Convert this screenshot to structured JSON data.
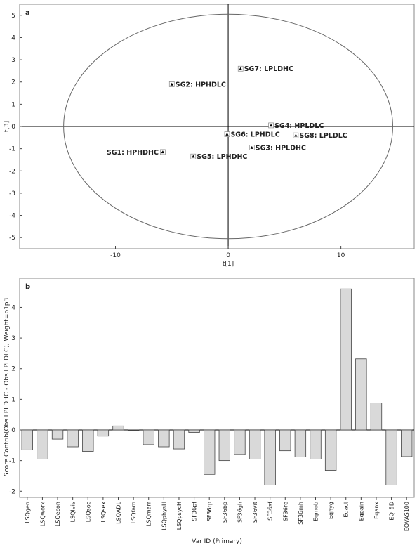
{
  "chart_data": [
    {
      "type": "scatter",
      "panel_label": "a",
      "xlabel": "t[1]",
      "ylabel": "t[3]",
      "xlim": [
        -18.5,
        16.5
      ],
      "ylim": [
        -5.5,
        5.5
      ],
      "x_ticks": [
        "-10",
        "0",
        "10"
      ],
      "y_ticks": [
        "5",
        "4",
        "3",
        "2",
        "1",
        "0",
        "-1",
        "-2",
        "-3",
        "-4",
        "-5"
      ],
      "x_tick_values": [
        -10,
        0,
        10
      ],
      "y_tick_values": [
        5,
        4,
        3,
        2,
        1,
        0,
        -1,
        -2,
        -3,
        -4,
        -5
      ],
      "ellipse": {
        "center": [
          0,
          0
        ],
        "rx": 14.6,
        "ry": 5.05
      },
      "points": [
        {
          "label": "SG7: LPLDHC",
          "x": 1.1,
          "y": 2.6
        },
        {
          "label": "SG2: HPHDLC",
          "x": -5.0,
          "y": 1.9
        },
        {
          "label": "SG4: HPLDLC",
          "x": 3.8,
          "y": 0.05
        },
        {
          "label": "SG6: LPHDLC",
          "x": -0.1,
          "y": -0.35
        },
        {
          "label": "SG8: LPLDLC",
          "x": 6.0,
          "y": -0.4
        },
        {
          "label": "SG1: HPHDHC",
          "x": -5.8,
          "y": -1.15
        },
        {
          "label": "SG3: HPLDHC",
          "x": 2.1,
          "y": -0.95
        },
        {
          "label": "SG5: LPHDHC",
          "x": -3.1,
          "y": -1.35
        }
      ]
    },
    {
      "type": "bar",
      "panel_label": "b",
      "ylabel": "Score Contrib(Obs LPLDHC - Obs LPLDLC), Weight=p1p3",
      "xlabel": "Var ID (Primary)",
      "ylim": [
        -2.2,
        4.95
      ],
      "y_ticks": [
        "4",
        "3",
        "2",
        "1",
        "0",
        "-1",
        "-2"
      ],
      "y_tick_values": [
        4,
        3,
        2,
        1,
        0,
        -1,
        -2
      ],
      "categories": [
        "LSQgen",
        "LSQwork",
        "LSQecon",
        "LSQleis",
        "LSQsoc",
        "LSQsex",
        "LSQADL",
        "LSQfam",
        "LSQmarr",
        "LSQphysH",
        "LSQpsycH",
        "SF36pf",
        "SF36rp",
        "SF36bp",
        "SF36gh",
        "SF36vit",
        "SF36sf",
        "SF36re",
        "SF36mh",
        "Eqmob",
        "Eqhyg",
        "Eqact",
        "Eqpain",
        "Eqanx",
        "EQ_5D",
        "EQVAS100"
      ],
      "values": [
        -0.65,
        -0.95,
        -0.3,
        -0.55,
        -0.7,
        -0.2,
        0.13,
        0.0,
        -0.48,
        -0.55,
        -0.62,
        -0.08,
        -1.45,
        -1.0,
        -0.8,
        -0.95,
        -1.8,
        -0.68,
        -0.88,
        -0.95,
        -1.32,
        4.6,
        2.32,
        0.88,
        -1.8,
        -0.87
      ]
    }
  ]
}
